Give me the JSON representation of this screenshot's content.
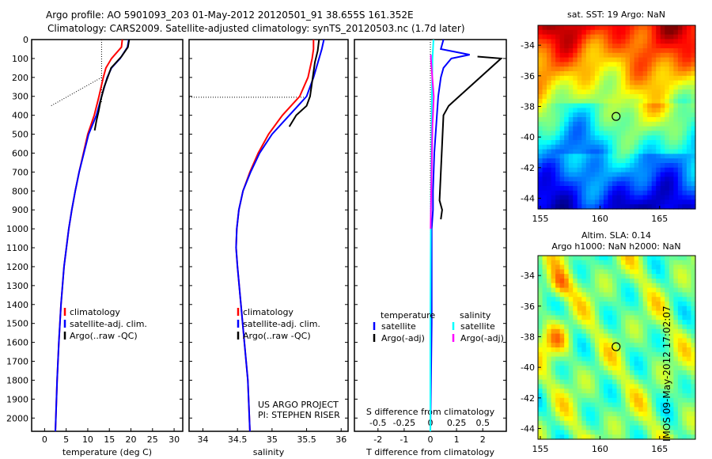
{
  "title_line1": "Argo profile: AO 5901093_203 01-May-2012 20120501_91 38.655S 161.352E",
  "title_line2": "Climatology: CARS2009. Satellite-adjusted climatology: synTS_20120503.nc (1.7d later)",
  "colors": {
    "climatology": "#ff0000",
    "satellite": "#0000ff",
    "argo": "#000000",
    "sal_satellite": "#00ffff",
    "sal_argo": "#ff00ff"
  },
  "chart_data": [
    {
      "type": "line",
      "name": "temperature",
      "xlabel": "temperature (deg C)",
      "xlim": [
        -3,
        32
      ],
      "ylim": [
        2070,
        0
      ],
      "xticks": [
        "0",
        "5",
        "10",
        "15",
        "20",
        "25",
        "30"
      ],
      "xtick_values": [
        0,
        5,
        10,
        15,
        20,
        25,
        30
      ],
      "yticks": [
        "0",
        "100",
        "200",
        "300",
        "400",
        "500",
        "600",
        "700",
        "800",
        "900",
        "1000",
        "1100",
        "1200",
        "1300",
        "1400",
        "1500",
        "1600",
        "1700",
        "1800",
        "1900",
        "2000"
      ],
      "legend": [
        "climatology",
        "satellite-adj. clim.",
        "Argo(..raw -QC)"
      ],
      "series": [
        {
          "name": "climatology",
          "color": "#ff0000",
          "depth": [
            0,
            40,
            100,
            150,
            200,
            300,
            400,
            500,
            600,
            700,
            800,
            900,
            1000,
            1200,
            1400,
            1600,
            1800,
            2070
          ],
          "values": [
            18,
            17.8,
            15.5,
            14.2,
            13.6,
            12.6,
            11.5,
            10,
            9,
            8,
            7.1,
            6.3,
            5.6,
            4.5,
            3.8,
            3.3,
            2.9,
            2.5
          ]
        },
        {
          "name": "satellite-adj. clim.",
          "color": "#0000ff",
          "depth": [
            0,
            40,
            100,
            150,
            200,
            300,
            400,
            500,
            600,
            700,
            800,
            900,
            1000,
            1200,
            1400,
            1600,
            1800,
            2070
          ],
          "values": [
            19.5,
            19.2,
            17.5,
            15.5,
            14.5,
            13.2,
            12,
            10.2,
            9.1,
            8,
            7.1,
            6.3,
            5.6,
            4.5,
            3.8,
            3.3,
            2.9,
            2.5
          ]
        },
        {
          "name": "Argo(..raw -QC)",
          "color": "#000000",
          "depth": [
            0,
            40,
            90,
            150,
            250,
            320,
            380,
            430,
            480
          ],
          "values": [
            19.6,
            19.3,
            17.8,
            15.4,
            13.8,
            13,
            12.5,
            12,
            11.6
          ]
        }
      ]
    },
    {
      "type": "line",
      "name": "salinity",
      "xlabel": "salinity",
      "xlim": [
        33.8,
        36.1
      ],
      "ylim": [
        2070,
        0
      ],
      "xticks": [
        "34",
        "34.5",
        "35",
        "35.5",
        "36"
      ],
      "xtick_values": [
        34,
        34.5,
        35,
        35.5,
        36
      ],
      "legend": [
        "climatology",
        "satellite-adj. clim.",
        "Argo(..raw -QC)"
      ],
      "annotation": [
        "US ARGO PROJECT",
        "PI: STEPHEN RISER"
      ],
      "series": [
        {
          "name": "climatology",
          "color": "#ff0000",
          "depth": [
            0,
            50,
            100,
            200,
            300,
            400,
            500,
            600,
            700,
            800,
            900,
            1000,
            1100,
            1200,
            1400,
            1600,
            1800,
            2070
          ],
          "values": [
            35.6,
            35.6,
            35.58,
            35.52,
            35.4,
            35.15,
            34.95,
            34.8,
            34.68,
            34.58,
            34.52,
            34.49,
            34.48,
            34.5,
            34.55,
            34.6,
            34.65,
            34.68
          ]
        },
        {
          "name": "satellite-adj. clim.",
          "color": "#0000ff",
          "depth": [
            0,
            50,
            100,
            200,
            300,
            400,
            500,
            600,
            700,
            800,
            900,
            1000,
            1100,
            1200,
            1400,
            1600,
            1800,
            2070
          ],
          "values": [
            35.75,
            35.72,
            35.68,
            35.6,
            35.5,
            35.25,
            35.0,
            34.82,
            34.69,
            34.58,
            34.52,
            34.49,
            34.48,
            34.5,
            34.55,
            34.6,
            34.65,
            34.68
          ]
        },
        {
          "name": "Argo(..raw -QC)",
          "color": "#000000",
          "depth": [
            0,
            60,
            120,
            300,
            350,
            400,
            460
          ],
          "values": [
            35.68,
            35.66,
            35.62,
            35.55,
            35.5,
            35.35,
            35.25
          ]
        }
      ]
    },
    {
      "type": "line",
      "name": "difference",
      "xlabel": "T difference from climatology",
      "x2label": "S difference from climatology",
      "xlim": [
        -2.9,
        2.9
      ],
      "ylim": [
        2070,
        0
      ],
      "xticks": [
        "-2",
        "-1",
        "0",
        "1",
        "2"
      ],
      "xtick_values": [
        -2,
        -1,
        0,
        1,
        2
      ],
      "x2ticks": [
        "-0.5",
        "-0.25",
        "0",
        "0.25",
        "0.5"
      ],
      "x2tick_values": [
        -0.5,
        -0.25,
        0,
        0.25,
        0.5
      ],
      "legend_header": [
        "temperature",
        "salinity"
      ],
      "legend": [
        "satellite",
        "Argo(-adj)",
        "satellite",
        "Argo(-adj)"
      ],
      "series": [
        {
          "name": "T satellite",
          "color": "#0000ff",
          "depth": [
            0,
            50,
            80,
            100,
            150,
            200,
            300,
            400,
            500,
            600,
            800,
            900,
            1000,
            1500,
            2070
          ],
          "values": [
            0.5,
            0.4,
            1.5,
            0.8,
            0.5,
            0.4,
            0.3,
            0.25,
            0.2,
            0.15,
            0.1,
            0.1,
            0.05,
            0.05,
            0
          ]
        },
        {
          "name": "T Argo(-adj)",
          "color": "#000000",
          "depth": [
            90,
            100,
            350,
            400,
            850,
            900,
            950
          ],
          "values": [
            1.8,
            2.7,
            0.7,
            0.5,
            0.35,
            0.45,
            0.4
          ]
        },
        {
          "name": "S satellite",
          "color": "#00ffff",
          "depth": [
            0,
            100,
            200,
            400,
            600,
            900,
            1200,
            1600,
            2070
          ],
          "values": [
            0.12,
            0.08,
            0.07,
            0.05,
            0.04,
            0.02,
            0.01,
            0,
            0
          ]
        },
        {
          "name": "S Argo(-adj)",
          "color": "#ff00ff",
          "depth": [
            80,
            100,
            300,
            400,
            450,
            900,
            1000
          ],
          "values": [
            0.02,
            0.02,
            0.13,
            0.1,
            0.08,
            0.02,
            0.01
          ]
        }
      ]
    }
  ],
  "map1": {
    "title": "sat. SST: 19 Argo: NaN",
    "xticks": [
      "155",
      "160",
      "165"
    ],
    "yticks": [
      "-34",
      "-36",
      "-38",
      "-40",
      "-42",
      "-44"
    ]
  },
  "map2": {
    "title_line1": "Altim. SLA: 0.14",
    "title_line2": "Argo h1000: NaN h2000: NaN",
    "xticks": [
      "155",
      "160",
      "165"
    ],
    "yticks": [
      "-34",
      "-36",
      "-38",
      "-40",
      "-42",
      "-44"
    ]
  },
  "footer": "IMOS 09-May-2012 17:02:07"
}
